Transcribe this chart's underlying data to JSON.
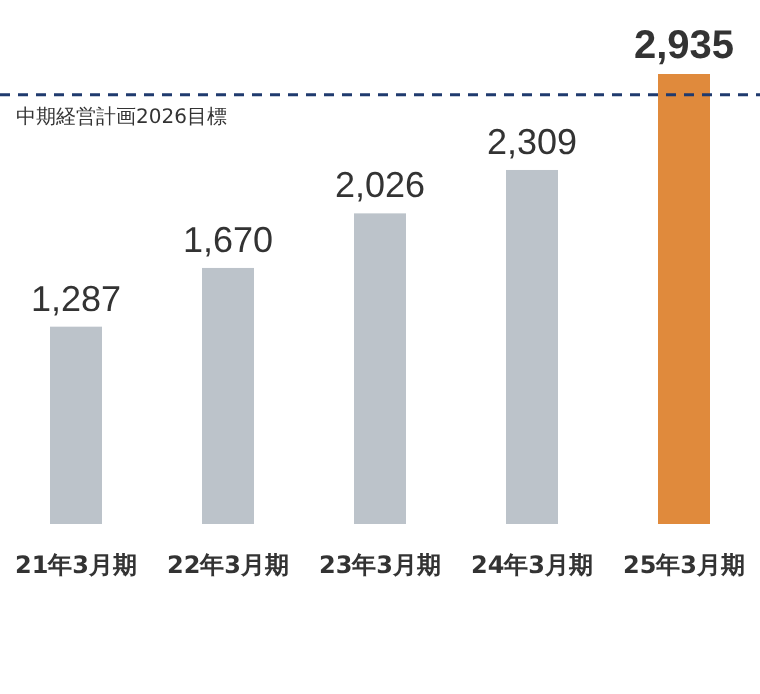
{
  "chart_data": {
    "type": "bar",
    "categories": [
      "21年3月期",
      "22年3月期",
      "23年3月期",
      "24年3月期",
      "25年3月期"
    ],
    "values": [
      1287,
      1670,
      2026,
      2309,
      2935
    ],
    "colors": [
      "#bcc3ca",
      "#bcc3ca",
      "#bcc3ca",
      "#bcc3ca",
      "#e08a3c"
    ],
    "value_labels": [
      "1,287",
      "1,670",
      "2,026",
      "2,309",
      "2,935"
    ],
    "ref_lines": [
      {
        "axis": "y",
        "value": 2800,
        "label": "中期経営計画2026目標",
        "color": "#1f3a6e",
        "line_style": "dashed"
      }
    ]
  }
}
